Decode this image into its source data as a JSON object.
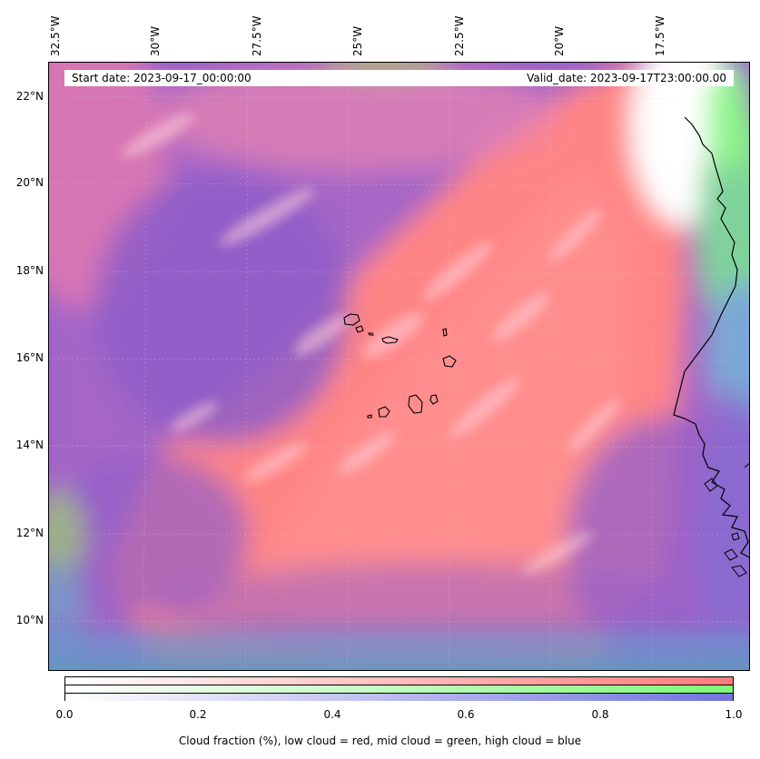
{
  "map": {
    "lon_ticks": [
      "32.5°W",
      "30°W",
      "27.5°W",
      "25°W",
      "22.5°W",
      "20°W",
      "17.5°W"
    ],
    "lat_ticks": [
      "22°N",
      "20°N",
      "18°N",
      "16°N",
      "14°N",
      "12°N",
      "10°N"
    ],
    "start_date": "Start date: 2023-09-17_00:00:00",
    "valid_date": "Valid_date: 2023-09-17T23:00:00.00",
    "colors": {
      "low_cloud": "#ff8080",
      "mid_cloud": "#80ff80",
      "high_cloud": "#8080e0",
      "coast": "#000000"
    }
  },
  "colorbar": {
    "ticks": [
      "0.0",
      "0.2",
      "0.4",
      "0.6",
      "0.8",
      "1.0"
    ],
    "caption": "Cloud fraction (%), low cloud = red, mid cloud = green, high cloud = blue"
  }
}
